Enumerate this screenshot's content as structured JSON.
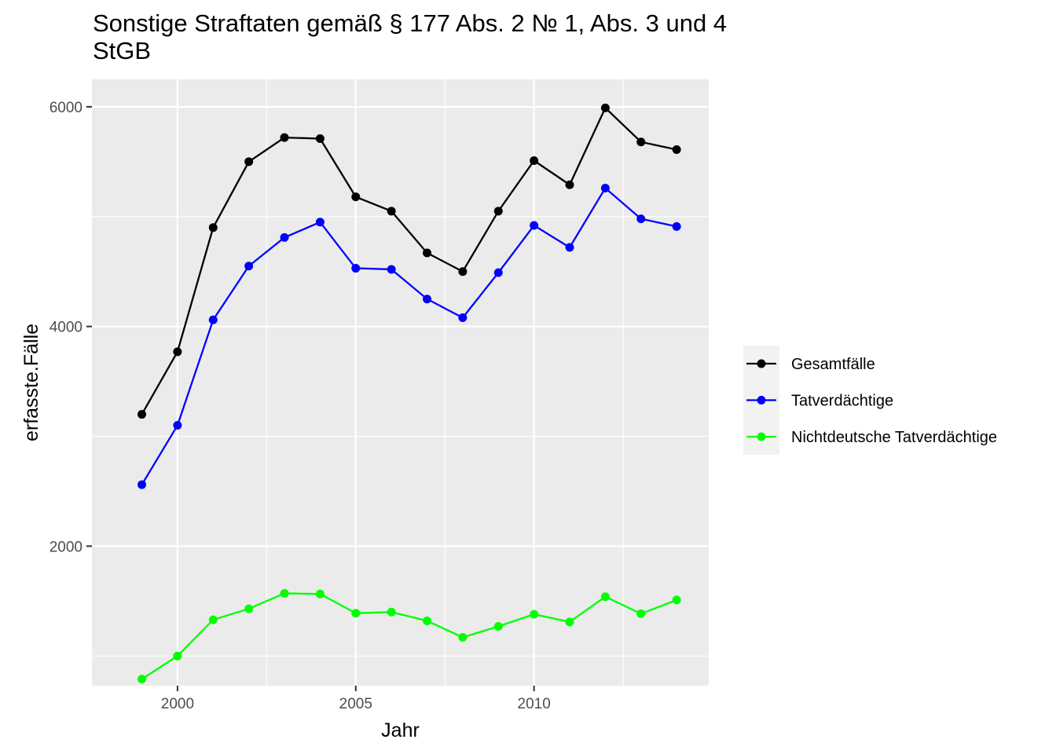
{
  "chart_data": {
    "type": "line",
    "title": "Sonstige Straftaten gemäß § 177 Abs. 2 № 1, Abs. 3 und 4\nStGB",
    "xlabel": "Jahr",
    "ylabel": "erfasste.Fälle",
    "x": [
      1999,
      2000,
      2001,
      2002,
      2003,
      2004,
      2005,
      2006,
      2007,
      2008,
      2009,
      2010,
      2011,
      2012,
      2013,
      2014
    ],
    "xticks": [
      2000,
      2005,
      2010
    ],
    "yticks": [
      2000,
      4000,
      6000
    ],
    "xlim": [
      1997.6,
      2014.9
    ],
    "ylim": [
      730,
      6250
    ],
    "grid": true,
    "legend_position": "right",
    "series": [
      {
        "name": "Gesamtfälle",
        "color": "#000000",
        "values": [
          3200,
          3770,
          4900,
          5500,
          5720,
          5710,
          5180,
          5050,
          4670,
          4500,
          5050,
          5510,
          5290,
          5990,
          5680,
          5610
        ]
      },
      {
        "name": "Tatverdächtige",
        "color": "#0000ff",
        "values": [
          2560,
          3100,
          4060,
          4550,
          4810,
          4950,
          4530,
          4520,
          4250,
          4080,
          4490,
          4920,
          4720,
          5260,
          4980,
          4910
        ]
      },
      {
        "name": "Nichtdeutsche Tatverdächtige",
        "color": "#00ff00",
        "values": [
          790,
          1000,
          1330,
          1430,
          1570,
          1565,
          1390,
          1400,
          1320,
          1170,
          1270,
          1380,
          1310,
          1540,
          1385,
          1510
        ]
      }
    ]
  }
}
